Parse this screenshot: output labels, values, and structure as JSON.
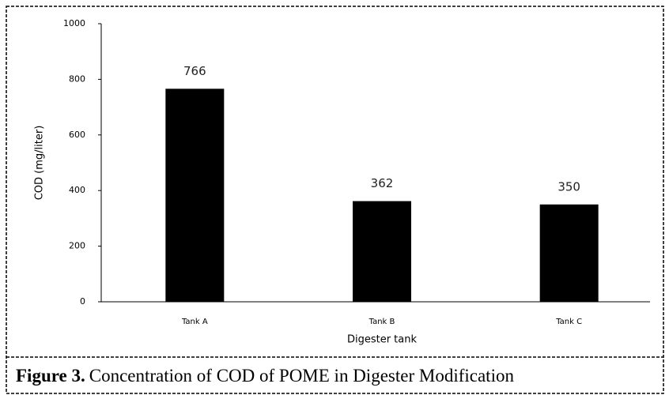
{
  "chart_data": {
    "type": "bar",
    "figure_label": "Figure 3.",
    "title": "Concentration of COD of POME in Digester Modification",
    "x_label": "Digester tank",
    "y_label": "COD (mg/liter)",
    "categories": [
      "Tank A",
      "Tank B",
      "Tank C"
    ],
    "values": [
      766,
      362,
      350
    ],
    "color": "#000000",
    "ylim": [
      0,
      1000
    ],
    "yticks": [
      0,
      200,
      400,
      600,
      800,
      1000
    ],
    "grid": false
  }
}
